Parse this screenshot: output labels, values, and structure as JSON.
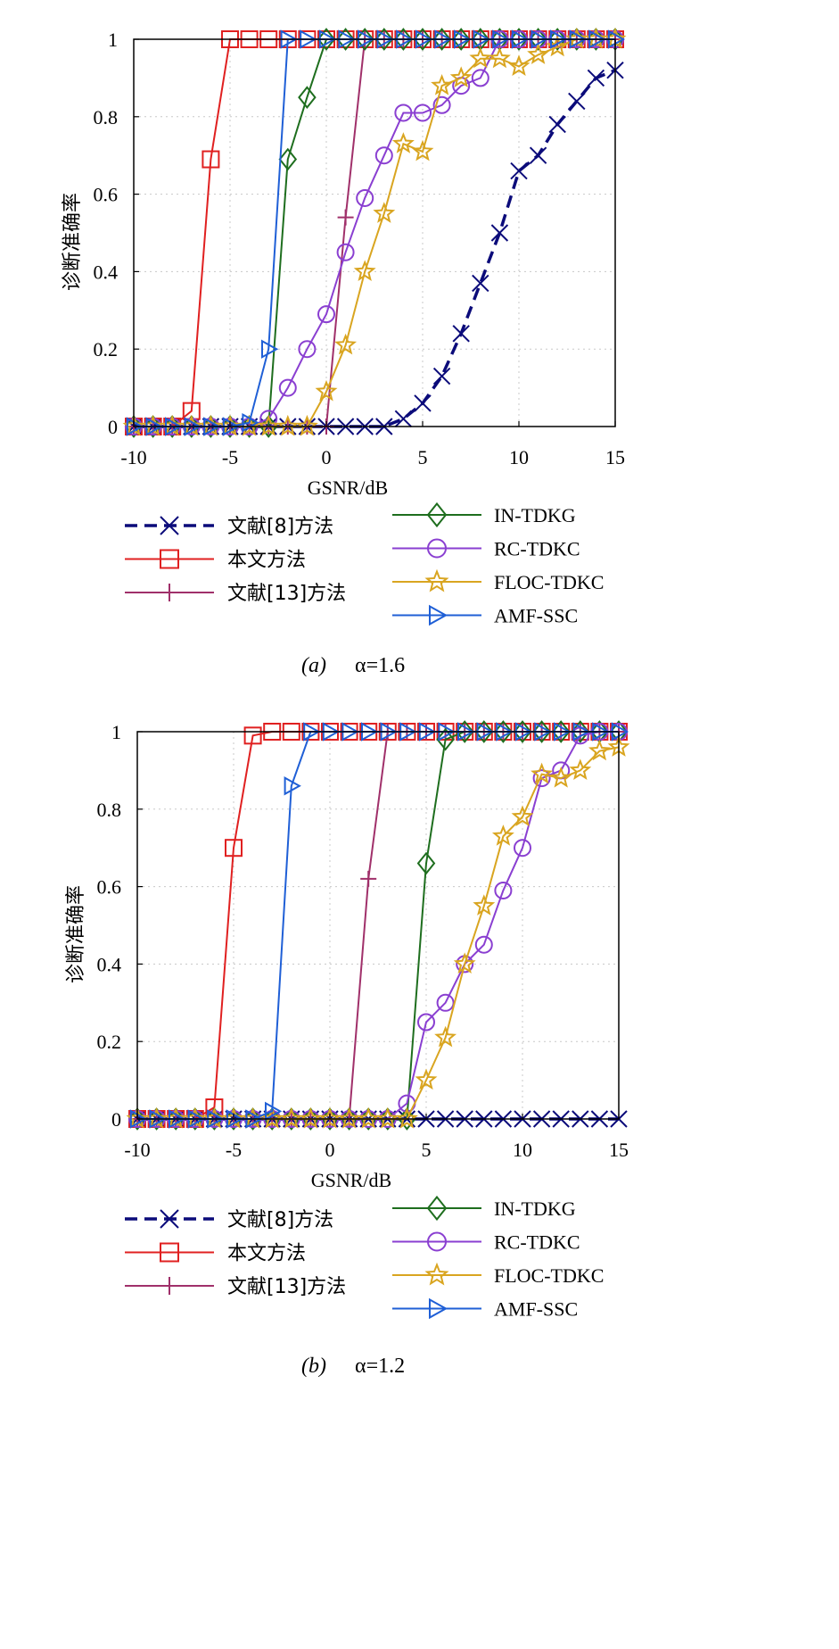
{
  "charts": [
    {
      "panel": "a",
      "caption_letter": "a",
      "caption_param": "α=1.6",
      "chart_data": {
        "type": "line",
        "xlabel": "GSNR/dB",
        "ylabel": "诊断准确率",
        "xlim": [
          -10,
          15
        ],
        "ylim": [
          0,
          1
        ],
        "xticks": [
          -10,
          -5,
          0,
          5,
          10,
          15
        ],
        "yticks": [
          0,
          0.2,
          0.4,
          0.6,
          0.8,
          1
        ],
        "grid": true,
        "series": [
          {
            "name": "文献[8]方法",
            "color": "#0b0b7a",
            "marker": "x",
            "dash": true,
            "x": [
              -10,
              -9,
              -8,
              -7,
              -6,
              -5,
              -4,
              -3,
              -2,
              -1,
              0,
              1,
              2,
              3,
              4,
              5,
              6,
              7,
              8,
              9,
              10,
              11,
              12,
              13,
              14,
              15
            ],
            "y": [
              0,
              0,
              0,
              0,
              0,
              0,
              0,
              0,
              0,
              0,
              0,
              0,
              0,
              0,
              0.02,
              0.06,
              0.13,
              0.24,
              0.37,
              0.5,
              0.66,
              0.7,
              0.78,
              0.84,
              0.9,
              0.92
            ]
          },
          {
            "name": "本文方法",
            "color": "#e02020",
            "marker": "square",
            "x": [
              -10,
              -9,
              -8,
              -7,
              -6,
              -5,
              -4,
              -3,
              -2,
              -1,
              0,
              1,
              2,
              3,
              4,
              5,
              6,
              7,
              8,
              9,
              10,
              11,
              12,
              13,
              14,
              15
            ],
            "y": [
              0,
              0,
              0,
              0.04,
              0.69,
              1,
              1,
              1,
              1,
              1,
              1,
              1,
              1,
              1,
              1,
              1,
              1,
              1,
              1,
              1,
              1,
              1,
              1,
              1,
              1,
              1
            ]
          },
          {
            "name": "文献[13]方法",
            "color": "#a0306a",
            "marker": "plus",
            "x": [
              -10,
              -9,
              -8,
              -7,
              -6,
              -5,
              -4,
              -3,
              -2,
              -1,
              0,
              1,
              2,
              3,
              4,
              5,
              6,
              7,
              8,
              9,
              10,
              11,
              12,
              13,
              14,
              15
            ],
            "y": [
              0,
              0,
              0,
              0,
              0,
              0,
              0,
              0,
              0,
              0,
              0,
              0.54,
              1,
              1,
              1,
              1,
              1,
              1,
              1,
              1,
              1,
              1,
              1,
              1,
              1,
              1
            ]
          },
          {
            "name": "IN-TDKG",
            "color": "#1e6e1e",
            "marker": "diamond",
            "x": [
              -10,
              -9,
              -8,
              -7,
              -6,
              -5,
              -4,
              -3,
              -2,
              -1,
              0,
              1,
              2,
              3,
              4,
              5,
              6,
              7,
              8,
              9,
              10,
              11,
              12,
              13,
              14,
              15
            ],
            "y": [
              0,
              0,
              0,
              0,
              0,
              0,
              0,
              0,
              0.69,
              0.85,
              1,
              1,
              1,
              1,
              1,
              1,
              1,
              1,
              1,
              1,
              1,
              1,
              1,
              1,
              1,
              1
            ]
          },
          {
            "name": "RC-TDKC",
            "color": "#8a3fd1",
            "marker": "circle",
            "x": [
              -10,
              -9,
              -8,
              -7,
              -6,
              -5,
              -4,
              -3,
              -2,
              -1,
              0,
              1,
              2,
              3,
              4,
              5,
              6,
              7,
              8,
              9,
              10,
              11,
              12,
              13,
              14,
              15
            ],
            "y": [
              0,
              0,
              0,
              0,
              0,
              0,
              0,
              0.02,
              0.1,
              0.2,
              0.29,
              0.45,
              0.59,
              0.7,
              0.81,
              0.81,
              0.83,
              0.88,
              0.9,
              1,
              1,
              1,
              1,
              1,
              1,
              1
            ]
          },
          {
            "name": "FLOC-TDKC",
            "color": "#d9a520",
            "marker": "star",
            "x": [
              -10,
              -9,
              -8,
              -7,
              -6,
              -5,
              -4,
              -3,
              -2,
              -1,
              0,
              1,
              2,
              3,
              4,
              5,
              6,
              7,
              8,
              9,
              10,
              11,
              12,
              13,
              14,
              15
            ],
            "y": [
              0,
              0,
              0,
              0,
              0,
              0,
              0,
              0,
              0,
              0,
              0.09,
              0.21,
              0.4,
              0.55,
              0.73,
              0.71,
              0.88,
              0.9,
              0.95,
              0.95,
              0.93,
              0.96,
              0.98,
              1,
              1,
              1
            ]
          },
          {
            "name": "AMF-SSC",
            "color": "#1f5fd6",
            "marker": "triangle",
            "x": [
              -10,
              -9,
              -8,
              -7,
              -6,
              -5,
              -4,
              -3,
              -2,
              -1,
              0,
              1,
              2,
              3,
              4,
              5,
              6,
              7,
              8,
              9,
              10,
              11,
              12,
              13,
              14,
              15
            ],
            "y": [
              0,
              0,
              0,
              0,
              0,
              0,
              0.01,
              0.2,
              1,
              1,
              1,
              1,
              1,
              1,
              1,
              1,
              1,
              1,
              1,
              1,
              1,
              1,
              1,
              1,
              1,
              1
            ]
          }
        ]
      }
    },
    {
      "panel": "b",
      "caption_letter": "b",
      "caption_param": "α=1.2",
      "chart_data": {
        "type": "line",
        "xlabel": "GSNR/dB",
        "ylabel": "诊断准确率",
        "xlim": [
          -10,
          15
        ],
        "ylim": [
          0,
          1
        ],
        "xticks": [
          -10,
          -5,
          0,
          5,
          10,
          15
        ],
        "yticks": [
          0,
          0.2,
          0.4,
          0.6,
          0.8,
          1
        ],
        "grid": true,
        "series": [
          {
            "name": "文献[8]方法",
            "color": "#0b0b7a",
            "marker": "x",
            "dash": true,
            "x": [
              -10,
              -9,
              -8,
              -7,
              -6,
              -5,
              -4,
              -3,
              -2,
              -1,
              0,
              1,
              2,
              3,
              4,
              5,
              6,
              7,
              8,
              9,
              10,
              11,
              12,
              13,
              14,
              15
            ],
            "y": [
              0,
              0,
              0,
              0,
              0,
              0,
              0,
              0,
              0,
              0,
              0,
              0,
              0,
              0,
              0,
              0,
              0,
              0,
              0,
              0,
              0,
              0,
              0,
              0,
              0,
              0
            ]
          },
          {
            "name": "本文方法",
            "color": "#e02020",
            "marker": "square",
            "x": [
              -10,
              -9,
              -8,
              -7,
              -6,
              -5,
              -4,
              -3,
              -2,
              -1,
              0,
              1,
              2,
              3,
              4,
              5,
              6,
              7,
              8,
              9,
              10,
              11,
              12,
              13,
              14,
              15
            ],
            "y": [
              0,
              0,
              0,
              0,
              0.03,
              0.7,
              0.99,
              1,
              1,
              1,
              1,
              1,
              1,
              1,
              1,
              1,
              1,
              1,
              1,
              1,
              1,
              1,
              1,
              1,
              1,
              1
            ]
          },
          {
            "name": "文献[13]方法",
            "color": "#a0306a",
            "marker": "plus",
            "x": [
              -10,
              -9,
              -8,
              -7,
              -6,
              -5,
              -4,
              -3,
              -2,
              -1,
              0,
              1,
              2,
              3,
              4,
              5,
              6,
              7,
              8,
              9,
              10,
              11,
              12,
              13,
              14,
              15
            ],
            "y": [
              0,
              0,
              0,
              0,
              0,
              0,
              0,
              0,
              0,
              0,
              0,
              0,
              0.62,
              1,
              1,
              1,
              1,
              1,
              1,
              1,
              1,
              1,
              1,
              1,
              1,
              1
            ]
          },
          {
            "name": "IN-TDKG",
            "color": "#1e6e1e",
            "marker": "diamond",
            "x": [
              -10,
              -9,
              -8,
              -7,
              -6,
              -5,
              -4,
              -3,
              -2,
              -1,
              0,
              1,
              2,
              3,
              4,
              5,
              6,
              7,
              8,
              9,
              10,
              11,
              12,
              13,
              14,
              15
            ],
            "y": [
              0,
              0,
              0,
              0,
              0,
              0,
              0,
              0,
              0,
              0,
              0,
              0,
              0,
              0,
              0,
              0.66,
              0.98,
              1,
              1,
              1,
              1,
              1,
              1,
              1,
              1,
              1
            ]
          },
          {
            "name": "RC-TDKC",
            "color": "#8a3fd1",
            "marker": "circle",
            "x": [
              -10,
              -9,
              -8,
              -7,
              -6,
              -5,
              -4,
              -3,
              -2,
              -1,
              0,
              1,
              2,
              3,
              4,
              5,
              6,
              7,
              8,
              9,
              10,
              11,
              12,
              13,
              14,
              15
            ],
            "y": [
              0,
              0,
              0,
              0,
              0,
              0,
              0,
              0,
              0,
              0,
              0,
              0,
              0,
              0,
              0.04,
              0.25,
              0.3,
              0.4,
              0.45,
              0.59,
              0.7,
              0.88,
              0.9,
              0.99,
              1,
              1
            ]
          },
          {
            "name": "FLOC-TDKC",
            "color": "#d9a520",
            "marker": "star",
            "x": [
              -10,
              -9,
              -8,
              -7,
              -6,
              -5,
              -4,
              -3,
              -2,
              -1,
              0,
              1,
              2,
              3,
              4,
              5,
              6,
              7,
              8,
              9,
              10,
              11,
              12,
              13,
              14,
              15
            ],
            "y": [
              0,
              0,
              0,
              0,
              0,
              0,
              0,
              0,
              0,
              0,
              0,
              0,
              0,
              0,
              0,
              0.1,
              0.21,
              0.4,
              0.55,
              0.73,
              0.78,
              0.89,
              0.88,
              0.9,
              0.95,
              0.96
            ]
          },
          {
            "name": "AMF-SSC",
            "color": "#1f5fd6",
            "marker": "triangle",
            "x": [
              -10,
              -9,
              -8,
              -7,
              -6,
              -5,
              -4,
              -3,
              -2,
              -1,
              0,
              1,
              2,
              3,
              4,
              5,
              6,
              7,
              8,
              9,
              10,
              11,
              12,
              13,
              14,
              15
            ],
            "y": [
              0,
              0,
              0,
              0,
              0,
              0,
              0,
              0.02,
              0.86,
              1,
              1,
              1,
              1,
              1,
              1,
              1,
              1,
              1,
              1,
              1,
              1,
              1,
              1,
              1,
              1,
              1
            ]
          }
        ]
      }
    }
  ]
}
